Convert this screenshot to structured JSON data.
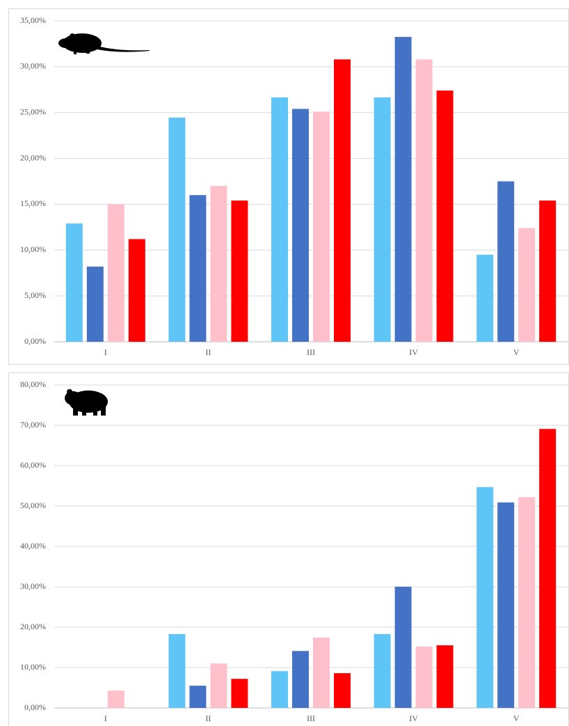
{
  "chart_data": [
    {
      "type": "bar",
      "categories": [
        "I",
        "II",
        "III",
        "IV",
        "V"
      ],
      "series": [
        {
          "color": "#5fc5f7",
          "values": [
            12.9,
            24.45,
            26.65,
            26.65,
            9.5
          ]
        },
        {
          "color": "#4472c4",
          "values": [
            8.2,
            16.0,
            25.4,
            33.25,
            17.5
          ]
        },
        {
          "color": "#ffc0cb",
          "values": [
            15.0,
            17.0,
            25.1,
            30.8,
            12.4
          ]
        },
        {
          "color": "#ff0000",
          "values": [
            11.2,
            15.4,
            30.8,
            27.4,
            15.4
          ]
        }
      ],
      "ylim": [
        0,
        35
      ],
      "yticks": [
        {
          "value": 0,
          "label": "0,00%"
        },
        {
          "value": 5,
          "label": "5,00%"
        },
        {
          "value": 10,
          "label": "10,00%"
        },
        {
          "value": 15,
          "label": "15,00%"
        },
        {
          "value": 20,
          "label": "20,00%"
        },
        {
          "value": 25,
          "label": "25,00%"
        },
        {
          "value": 30,
          "label": "30,00%"
        },
        {
          "value": 35,
          "label": "35,00%"
        }
      ],
      "grid": true
    },
    {
      "type": "bar",
      "categories": [
        "I",
        "II",
        "III",
        "IV",
        "V"
      ],
      "series": [
        {
          "color": "#5fc5f7",
          "values": [
            0,
            18.3,
            9.1,
            18.3,
            54.7
          ]
        },
        {
          "color": "#4472c4",
          "values": [
            0,
            5.5,
            14.1,
            30.0,
            50.9
          ]
        },
        {
          "color": "#ffc0cb",
          "values": [
            4.3,
            11.0,
            17.4,
            15.2,
            52.2
          ]
        },
        {
          "color": "#ff0000",
          "values": [
            0,
            7.2,
            8.6,
            15.5,
            69.1
          ]
        }
      ],
      "ylim": [
        0,
        80
      ],
      "yticks": [
        {
          "value": 0,
          "label": "0,00%"
        },
        {
          "value": 10,
          "label": "10,00%"
        },
        {
          "value": 20,
          "label": "20,00%"
        },
        {
          "value": 30,
          "label": "30,00%"
        },
        {
          "value": 40,
          "label": "40,00%"
        },
        {
          "value": 50,
          "label": "50,00%"
        },
        {
          "value": 60,
          "label": "60,00%"
        },
        {
          "value": 70,
          "label": "70,00%"
        },
        {
          "value": 80,
          "label": "80,00%"
        }
      ],
      "grid": true
    }
  ]
}
